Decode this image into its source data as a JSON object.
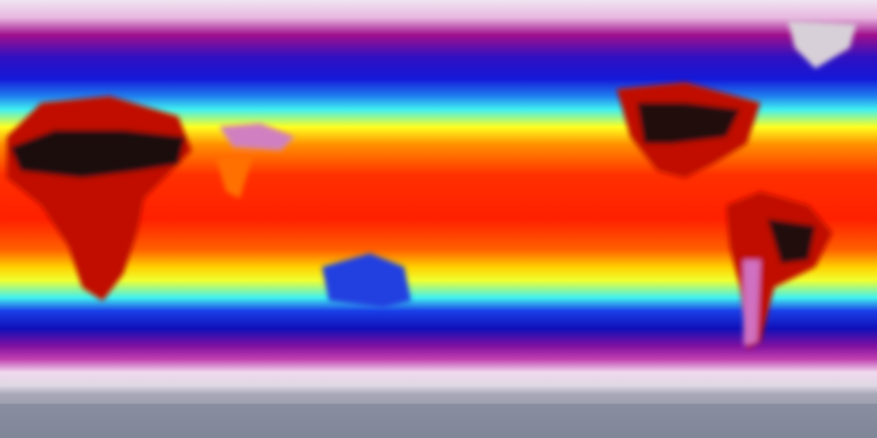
{
  "map": {
    "projection": "equirectangular",
    "colormap": [
      "#d8d8e4",
      "#f0d0ec",
      "#a0108c",
      "#1418d8",
      "#40f0f0",
      "#ffff20",
      "#ff9000",
      "#ff2000",
      "#c00000",
      "#200808"
    ],
    "land_colors": {
      "hot_desert": "#1a0a0a",
      "warm_land": "#c01000",
      "ice_greenland": "#d8d0d8",
      "antarctica": "#8890a0",
      "tibet": "#d080c0"
    }
  }
}
